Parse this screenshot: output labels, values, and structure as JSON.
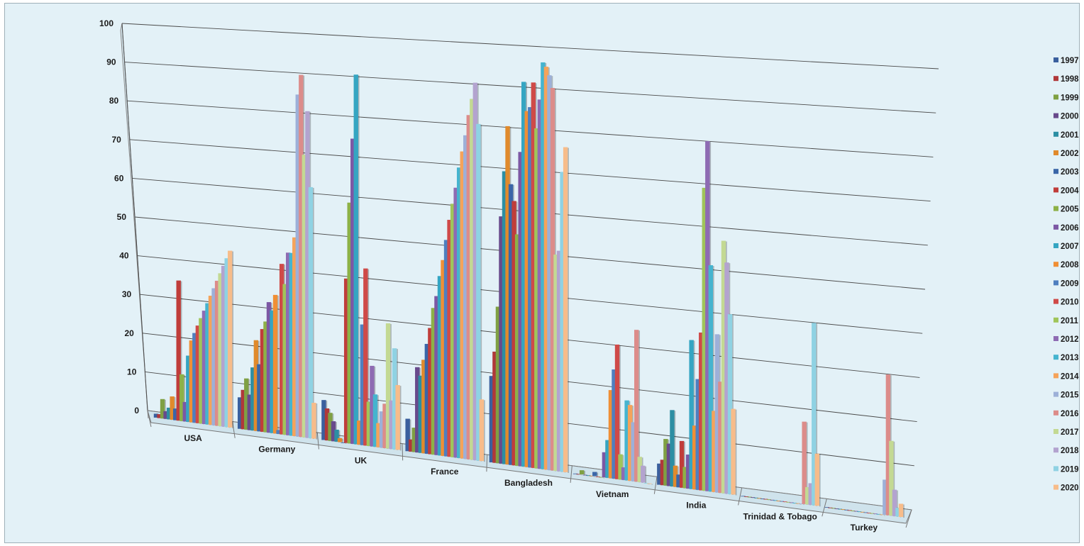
{
  "chart_data": {
    "type": "bar",
    "title": "",
    "xlabel": "",
    "ylabel": "",
    "ylim": [
      0,
      100
    ],
    "y_ticks": [
      "0",
      "10",
      "20",
      "30",
      "40",
      "50",
      "60",
      "70",
      "80",
      "90",
      "100"
    ],
    "grid": true,
    "legend_position": "right",
    "categories": [
      "USA",
      "Germany",
      "UK",
      "France",
      "Bangladesh",
      "Vietnam",
      "India",
      "Trinidad & Tobago",
      "Turkey"
    ],
    "series": [
      {
        "name": "1997",
        "color": "#3a5f9e",
        "values": [
          1,
          8,
          10,
          8,
          21,
          0,
          5,
          0,
          0
        ]
      },
      {
        "name": "1998",
        "color": "#b0383a",
        "values": [
          1,
          10,
          8,
          3,
          27,
          0,
          6,
          0,
          0
        ]
      },
      {
        "name": "1999",
        "color": "#7fa043",
        "values": [
          5,
          13,
          7,
          6,
          38,
          1,
          11,
          0,
          0
        ]
      },
      {
        "name": "2000",
        "color": "#684a8c",
        "values": [
          2,
          9,
          5,
          21,
          60,
          0,
          10,
          0,
          0
        ]
      },
      {
        "name": "2001",
        "color": "#2c8ea3",
        "values": [
          3,
          16,
          3,
          19,
          71,
          0,
          18,
          0,
          0
        ]
      },
      {
        "name": "2002",
        "color": "#e08a2c",
        "values": [
          6,
          23,
          1,
          23,
          82,
          0,
          5,
          0,
          0
        ]
      },
      {
        "name": "2003",
        "color": "#3a66a8",
        "values": [
          3,
          17,
          0,
          27,
          68,
          1,
          3,
          0,
          0
        ]
      },
      {
        "name": "2004",
        "color": "#c03d3a",
        "values": [
          36,
          26,
          41,
          31,
          64,
          0,
          11,
          0,
          0
        ]
      },
      {
        "name": "2005",
        "color": "#8db147",
        "values": [
          12,
          28,
          60,
          36,
          56,
          0,
          5,
          0,
          0
        ]
      },
      {
        "name": "2006",
        "color": "#7c58a4",
        "values": [
          5,
          33,
          76,
          39,
          76,
          6,
          8,
          0,
          0
        ]
      },
      {
        "name": "2007",
        "color": "#35a5c2",
        "values": [
          17,
          31,
          92,
          44,
          93,
          9,
          35,
          0,
          0
        ]
      },
      {
        "name": "2008",
        "color": "#f08f35",
        "values": [
          21,
          35,
          6,
          48,
          86,
          21,
          15,
          0,
          0
        ]
      },
      {
        "name": "2009",
        "color": "#4f7fbf",
        "values": [
          23,
          1,
          30,
          53,
          87,
          26,
          26,
          0,
          0
        ]
      },
      {
        "name": "2010",
        "color": "#cf4a48",
        "values": [
          25,
          43,
          44,
          58,
          93,
          32,
          37,
          0,
          0
        ]
      },
      {
        "name": "2011",
        "color": "#a0c55a",
        "values": [
          27,
          38,
          11,
          62,
          82,
          6,
          71,
          0,
          0
        ]
      },
      {
        "name": "2012",
        "color": "#8e6bb3",
        "values": [
          29,
          46,
          20,
          66,
          89,
          3,
          82,
          0,
          0
        ]
      },
      {
        "name": "2013",
        "color": "#45b4cf",
        "values": [
          31,
          46,
          13,
          71,
          98,
          19,
          53,
          0,
          0
        ]
      },
      {
        "name": "2014",
        "color": "#f5a35a",
        "values": [
          33,
          50,
          6,
          75,
          97,
          18,
          19,
          0,
          0
        ]
      },
      {
        "name": "2015",
        "color": "#9db0d8",
        "values": [
          35,
          86,
          9,
          79,
          95,
          14,
          37,
          0,
          8
        ]
      },
      {
        "name": "2016",
        "color": "#dc8c8a",
        "values": [
          37,
          91,
          11,
          84,
          92,
          36,
          26,
          19,
          32
        ]
      },
      {
        "name": "2017",
        "color": "#c3d993",
        "values": [
          39,
          71,
          31,
          88,
          52,
          6,
          59,
          4,
          17
        ]
      },
      {
        "name": "2018",
        "color": "#b3a3cf",
        "values": [
          41,
          82,
          12,
          92,
          53,
          4,
          54,
          5,
          6
        ]
      },
      {
        "name": "2019",
        "color": "#8fd2e3",
        "values": [
          43,
          63,
          25,
          82,
          72,
          0,
          42,
          42,
          2
        ]
      },
      {
        "name": "2020",
        "color": "#f7bc8a",
        "values": [
          45,
          9,
          16,
          15,
          78,
          0,
          20,
          12,
          3
        ]
      }
    ]
  }
}
